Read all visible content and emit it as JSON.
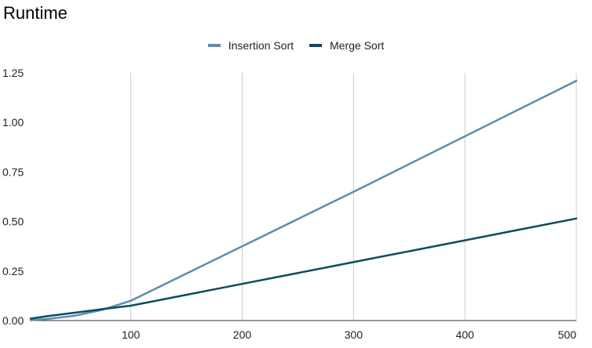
{
  "chart_data": {
    "type": "line",
    "title": "Runtime",
    "xlabel": "",
    "ylabel": "",
    "xlim": [
      10,
      500
    ],
    "ylim": [
      0,
      1.25
    ],
    "x_ticks": [
      100,
      200,
      300,
      400,
      500
    ],
    "x_tick_labels": [
      "100",
      "200",
      "300",
      "400",
      "500"
    ],
    "y_ticks": [
      0,
      0.25,
      0.5,
      0.75,
      1.0,
      1.25
    ],
    "y_tick_labels": [
      "0.00",
      "0.25",
      "0.50",
      "0.75",
      "1.00",
      "1.25"
    ],
    "grid": {
      "vertical": true,
      "horizontal": false
    },
    "legend_position": "top-center",
    "series": [
      {
        "name": "Insertion Sort",
        "color": "#5b8fac",
        "x": [
          10,
          25,
          50,
          75,
          100,
          200,
          300,
          400,
          500
        ],
        "y": [
          0.002,
          0.008,
          0.025,
          0.055,
          0.1,
          0.375,
          0.65,
          0.93,
          1.21
        ]
      },
      {
        "name": "Merge Sort",
        "color": "#0d4a63",
        "x": [
          10,
          25,
          50,
          75,
          100,
          200,
          300,
          400,
          500
        ],
        "y": [
          0.01,
          0.022,
          0.04,
          0.058,
          0.075,
          0.185,
          0.295,
          0.405,
          0.515
        ]
      }
    ]
  }
}
